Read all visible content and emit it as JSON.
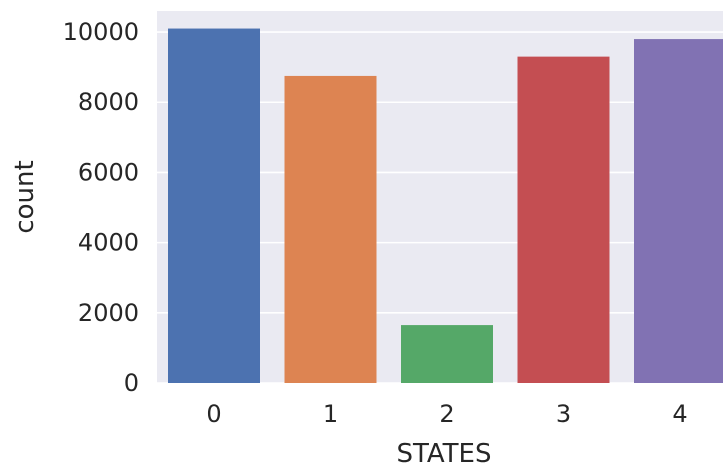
{
  "chart_data": {
    "type": "bar",
    "categories": [
      "0",
      "1",
      "2",
      "3",
      "4"
    ],
    "values": [
      10100,
      8750,
      1650,
      9300,
      9800
    ],
    "xlabel": "STATES",
    "ylabel": "count",
    "ylim": [
      0,
      10600
    ],
    "yticks": [
      0,
      2000,
      4000,
      6000,
      8000,
      10000
    ],
    "grid": true,
    "colors": [
      "#4c72b0",
      "#dd8452",
      "#55a868",
      "#c44e52",
      "#8172b3"
    ],
    "background": "#eaeaf2"
  }
}
